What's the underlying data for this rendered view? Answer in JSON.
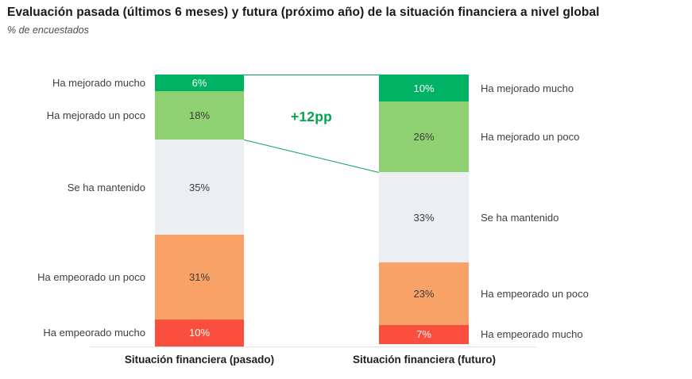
{
  "header": {
    "title": "Evaluación pasada (últimos 6 meses) y futura (próximo año) de la situación financiera a nivel global",
    "subtitle": "% de encuestados"
  },
  "chart_data": {
    "type": "bar",
    "variant": "100-percent-stacked-comparison",
    "title": "Evaluación pasada (últimos 6 meses) y futura (próximo año) de la situación financiera a nivel global",
    "unit": "% de encuestados",
    "grid": false,
    "ylim": [
      0,
      100
    ],
    "categories": [
      "Situación financiera (pasado)",
      "Situación financiera (futuro)"
    ],
    "segments": [
      {
        "label": "Ha mejorado mucho",
        "color": "#00b364",
        "label_color": "#ffffff"
      },
      {
        "label": "Ha mejorado un poco",
        "color": "#8fd172",
        "label_color": "#3c3c3c"
      },
      {
        "label": "Se ha mantenido",
        "color": "#eceff1",
        "label_color": "#3c3c3c"
      },
      {
        "label": "Ha empeorado un poco",
        "color": "#f9a268",
        "label_color": "#3c3c3c"
      },
      {
        "label": "Ha empeorado mucho",
        "color": "#fa4f3f",
        "label_color": "#ffffff"
      }
    ],
    "series": [
      {
        "name": "Situación financiera (pasado)",
        "values": [
          6,
          18,
          35,
          31,
          10
        ],
        "value_labels": [
          "6%",
          "18%",
          "35%",
          "31%",
          "10%"
        ]
      },
      {
        "name": "Situación financiera (futuro)",
        "values": [
          10,
          26,
          33,
          23,
          7
        ],
        "value_labels": [
          "10%",
          "26%",
          "33%",
          "23%",
          "7%"
        ]
      }
    ],
    "annotation": {
      "text": "+12pp",
      "color": "#00a44f"
    },
    "connector": {
      "segments_spanned": 2,
      "color": "#00a44f"
    },
    "axis": {
      "baseline_color": "#e0e2e4"
    },
    "legend_position": "side-labels"
  }
}
